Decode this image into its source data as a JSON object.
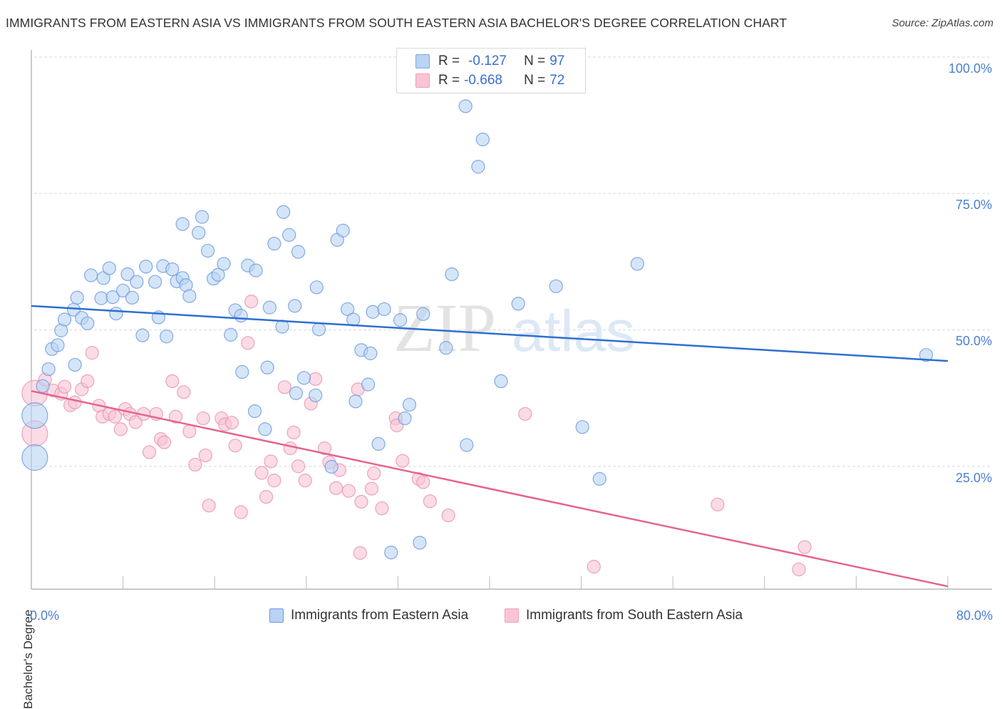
{
  "title": "IMMIGRANTS FROM EASTERN ASIA VS IMMIGRANTS FROM SOUTH EASTERN ASIA BACHELOR'S DEGREE CORRELATION CHART",
  "source": "Source: ZipAtlas.com",
  "watermark": {
    "zip": "ZIP",
    "atlas": "atlas"
  },
  "legend": {
    "rows": [
      {
        "r_label": "R =",
        "r_value": "-0.127",
        "n_label": "N =",
        "n_value": "97"
      },
      {
        "r_label": "R =",
        "r_value": "-0.668",
        "n_label": "N =",
        "n_value": "72"
      }
    ]
  },
  "bottom_legend": [
    "Immigrants from Eastern Asia",
    "Immigrants from South Eastern Asia"
  ],
  "colors": {
    "blue_fill": "#b9d3f4",
    "blue_stroke": "#6f9be0",
    "blue_line": "#2e6fd0",
    "pink_fill": "#f8c3d3",
    "pink_stroke": "#e995b0",
    "pink_line": "#e5648f",
    "tick_text": "#4a7fd4"
  },
  "chart_data": {
    "type": "scatter",
    "title": "IMMIGRANTS FROM EASTERN ASIA VS IMMIGRANTS FROM SOUTH EASTERN ASIA BACHELOR'S DEGREE CORRELATION CHART",
    "xlabel": "",
    "ylabel": "Bachelor's Degree",
    "xlim": [
      0,
      80
    ],
    "ylim": [
      0,
      100
    ],
    "x_tick_labels": [
      "0.0%",
      "80.0%"
    ],
    "y_tick_labels": [
      "100.0%",
      "75.0%",
      "50.0%",
      "25.0%"
    ],
    "y_ticks": [
      100,
      75,
      50,
      25
    ],
    "grid": "horizontal dashed",
    "legend_placement": "top-center",
    "series": [
      {
        "name": "Immigrants from Eastern Asia",
        "R": -0.127,
        "N": 97,
        "trend": {
          "x": [
            0,
            80
          ],
          "y": [
            54.4,
            44.3
          ]
        },
        "points": [
          [
            0.3,
            34.3,
            "L"
          ],
          [
            0.3,
            26.6,
            "L"
          ],
          [
            1.0,
            39.7
          ],
          [
            1.5,
            42.8
          ],
          [
            1.8,
            46.5
          ],
          [
            2.3,
            47.2
          ],
          [
            2.6,
            49.9
          ],
          [
            2.9,
            51.9
          ],
          [
            3.8,
            43.6
          ],
          [
            3.7,
            53.7
          ],
          [
            4.0,
            55.9
          ],
          [
            4.4,
            52.2
          ],
          [
            4.9,
            51.2
          ],
          [
            5.2,
            60.0
          ],
          [
            6.1,
            55.8
          ],
          [
            6.3,
            59.5
          ],
          [
            6.8,
            61.3
          ],
          [
            7.1,
            56.0
          ],
          [
            7.4,
            53.0
          ],
          [
            8.0,
            57.2
          ],
          [
            8.4,
            60.2
          ],
          [
            8.8,
            55.9
          ],
          [
            9.2,
            58.8
          ],
          [
            9.7,
            49.0
          ],
          [
            10.0,
            61.6
          ],
          [
            10.8,
            58.8
          ],
          [
            11.1,
            52.3
          ],
          [
            11.5,
            61.7
          ],
          [
            11.8,
            48.8
          ],
          [
            12.3,
            61.1
          ],
          [
            12.7,
            58.9
          ],
          [
            13.2,
            59.5
          ],
          [
            13.5,
            58.2
          ],
          [
            13.8,
            56.2
          ],
          [
            13.2,
            69.4
          ],
          [
            14.9,
            70.7
          ],
          [
            14.6,
            67.8
          ],
          [
            15.4,
            64.5
          ],
          [
            15.9,
            59.4
          ],
          [
            16.3,
            60.1
          ],
          [
            16.8,
            62.1
          ],
          [
            17.4,
            49.1
          ],
          [
            17.8,
            53.6
          ],
          [
            18.3,
            52.6
          ],
          [
            18.4,
            42.3
          ],
          [
            18.9,
            61.8
          ],
          [
            19.6,
            60.9
          ],
          [
            19.5,
            35.1
          ],
          [
            20.4,
            31.8
          ],
          [
            20.6,
            43.1
          ],
          [
            20.8,
            54.1
          ],
          [
            21.2,
            65.8
          ],
          [
            21.9,
            50.6
          ],
          [
            22.0,
            71.6
          ],
          [
            22.5,
            67.4
          ],
          [
            23.0,
            54.4
          ],
          [
            23.3,
            64.3
          ],
          [
            23.1,
            38.4
          ],
          [
            23.8,
            41.2
          ],
          [
            24.8,
            38.0
          ],
          [
            24.9,
            57.8
          ],
          [
            25.1,
            50.1
          ],
          [
            26.2,
            24.9
          ],
          [
            26.7,
            66.5
          ],
          [
            27.2,
            68.2
          ],
          [
            27.6,
            53.8
          ],
          [
            28.1,
            51.9
          ],
          [
            28.3,
            36.9
          ],
          [
            28.8,
            46.3
          ],
          [
            29.4,
            40.0
          ],
          [
            29.6,
            45.7
          ],
          [
            29.8,
            53.3
          ],
          [
            30.3,
            29.1
          ],
          [
            30.8,
            53.8
          ],
          [
            31.4,
            9.2
          ],
          [
            32.2,
            51.8
          ],
          [
            32.6,
            33.8
          ],
          [
            33.0,
            36.3
          ],
          [
            33.9,
            11.0
          ],
          [
            34.2,
            52.9
          ],
          [
            36.7,
            60.2
          ],
          [
            36.2,
            46.7
          ],
          [
            37.9,
            91.0
          ],
          [
            38.0,
            28.9
          ],
          [
            39.0,
            79.9
          ],
          [
            39.4,
            84.9
          ],
          [
            41.0,
            40.6
          ],
          [
            42.5,
            54.8
          ],
          [
            45.8,
            58.0
          ],
          [
            48.1,
            32.2
          ],
          [
            49.6,
            22.7
          ],
          [
            52.9,
            62.1
          ],
          [
            78.1,
            45.4
          ]
        ]
      },
      {
        "name": "Immigrants from South Eastern Asia",
        "R": -0.668,
        "N": 72,
        "trend": {
          "x": [
            0,
            80
          ],
          "y": [
            38.8,
            3.0
          ]
        },
        "points": [
          [
            0.3,
            38.4,
            "L"
          ],
          [
            0.3,
            31.0,
            "L"
          ],
          [
            1.2,
            40.9
          ],
          [
            1.9,
            38.9
          ],
          [
            2.6,
            38.3
          ],
          [
            2.9,
            39.6
          ],
          [
            3.4,
            36.2
          ],
          [
            3.8,
            36.7
          ],
          [
            4.4,
            39.1
          ],
          [
            4.9,
            40.6
          ],
          [
            5.3,
            45.8
          ],
          [
            5.9,
            36.1
          ],
          [
            6.2,
            34.1
          ],
          [
            6.8,
            34.6
          ],
          [
            7.3,
            34.1
          ],
          [
            7.8,
            31.8
          ],
          [
            8.2,
            35.5
          ],
          [
            8.6,
            34.6
          ],
          [
            9.1,
            33.1
          ],
          [
            9.8,
            34.6
          ],
          [
            10.3,
            27.6
          ],
          [
            10.9,
            34.6
          ],
          [
            11.3,
            30.0
          ],
          [
            11.6,
            29.4
          ],
          [
            12.3,
            40.6
          ],
          [
            12.6,
            34.1
          ],
          [
            13.3,
            38.6
          ],
          [
            13.8,
            31.4
          ],
          [
            14.3,
            25.3
          ],
          [
            15.0,
            33.8
          ],
          [
            15.2,
            27.0
          ],
          [
            15.5,
            17.8
          ],
          [
            16.6,
            33.8
          ],
          [
            16.9,
            32.7
          ],
          [
            17.5,
            33.0
          ],
          [
            17.8,
            28.8
          ],
          [
            18.3,
            16.6
          ],
          [
            18.9,
            47.6
          ],
          [
            19.2,
            55.2
          ],
          [
            20.1,
            23.8
          ],
          [
            20.5,
            19.4
          ],
          [
            20.9,
            25.9
          ],
          [
            21.2,
            22.4
          ],
          [
            22.1,
            39.5
          ],
          [
            22.6,
            28.3
          ],
          [
            22.9,
            31.2
          ],
          [
            23.3,
            25.0
          ],
          [
            23.9,
            22.4
          ],
          [
            24.4,
            36.5
          ],
          [
            24.8,
            41.0
          ],
          [
            25.6,
            28.3
          ],
          [
            26.0,
            25.7
          ],
          [
            26.6,
            21.0
          ],
          [
            26.9,
            24.3
          ],
          [
            27.7,
            20.5
          ],
          [
            28.5,
            39.1
          ],
          [
            28.8,
            18.5
          ],
          [
            28.7,
            9.1
          ],
          [
            29.7,
            20.9
          ],
          [
            29.9,
            23.7
          ],
          [
            30.6,
            17.3
          ],
          [
            31.8,
            33.8
          ],
          [
            31.9,
            32.5
          ],
          [
            32.4,
            26.0
          ],
          [
            33.8,
            22.7
          ],
          [
            34.2,
            22.1
          ],
          [
            34.8,
            18.6
          ],
          [
            36.4,
            16.0
          ],
          [
            43.1,
            34.6
          ],
          [
            49.1,
            6.6
          ],
          [
            59.9,
            18.0
          ],
          [
            67.5,
            10.2
          ],
          [
            67.0,
            6.1
          ]
        ]
      }
    ]
  }
}
